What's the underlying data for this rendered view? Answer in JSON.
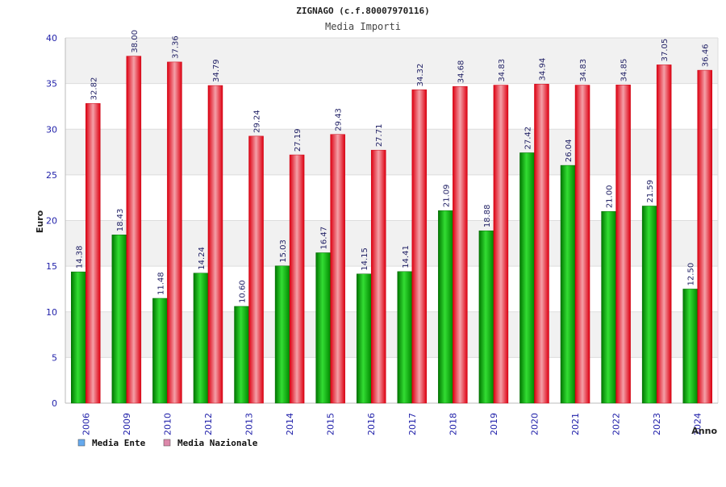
{
  "chart_data": {
    "type": "bar",
    "title": "ZIGNAGO (c.f.80007970116)",
    "subtitle": "Media Importi",
    "xlabel": "Anno",
    "ylabel": "Euro",
    "ylim": [
      0,
      40
    ],
    "yticks": [
      0,
      5,
      10,
      15,
      20,
      25,
      30,
      35,
      40
    ],
    "grid": true,
    "legend_position": "bottom-left",
    "categories": [
      "2006",
      "2009",
      "2010",
      "2012",
      "2013",
      "2014",
      "2015",
      "2016",
      "2017",
      "2018",
      "2019",
      "2020",
      "2021",
      "2022",
      "2023",
      "2024"
    ],
    "series": [
      {
        "name": "Media Ente",
        "legend_color": "#66aaee",
        "bar_color": "#22bb22",
        "values": [
          14.38,
          18.43,
          11.48,
          14.24,
          10.6,
          15.03,
          16.47,
          14.15,
          14.41,
          21.09,
          18.88,
          27.42,
          26.04,
          21.0,
          21.59,
          12.5
        ],
        "labels": [
          "14.38",
          "18.43",
          "11.48",
          "14.24",
          "10.60",
          "15.03",
          "16.47",
          "14.15",
          "14.41",
          "21.09",
          "18.88",
          "27.42",
          "26.04",
          "21.00",
          "21.59",
          "12.50"
        ]
      },
      {
        "name": "Media Nazionale",
        "legend_color": "#dd88aa",
        "bar_color": "#ee2233",
        "values": [
          32.82,
          38.0,
          37.36,
          34.79,
          29.24,
          27.19,
          29.43,
          27.71,
          34.32,
          34.68,
          34.83,
          34.94,
          34.83,
          34.85,
          37.05,
          36.46
        ],
        "labels": [
          "32.82",
          "38.00",
          "37.36",
          "34.79",
          "29.24",
          "27.19",
          "29.43",
          "27.71",
          "34.32",
          "34.68",
          "34.83",
          "34.94",
          "34.83",
          "34.85",
          "37.05",
          "36.46"
        ]
      }
    ]
  }
}
